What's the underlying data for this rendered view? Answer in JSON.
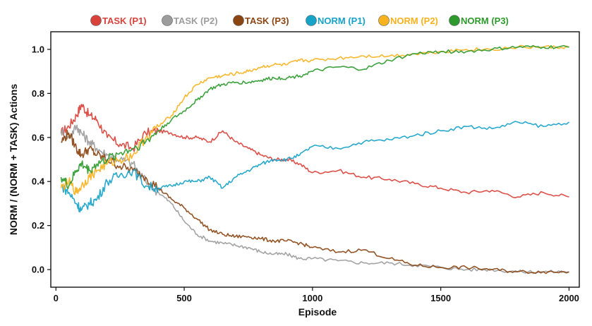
{
  "chart_data": {
    "type": "line",
    "title": "",
    "xlabel": "Episode",
    "ylabel": "NORM / (NORM + TASK) Actions",
    "xlim": [
      -20,
      2040
    ],
    "ylim": [
      -0.08,
      1.08
    ],
    "xticks": [
      0,
      500,
      1000,
      1500,
      2000
    ],
    "yticks": [
      0.0,
      0.2,
      0.4,
      0.6,
      0.8,
      1.0
    ],
    "xtick_labels": [
      "0",
      "500",
      "1000",
      "1500",
      "2000"
    ],
    "ytick_labels": [
      "0.0",
      "0.2",
      "0.4",
      "0.6",
      "0.8",
      "1.0"
    ],
    "legend_position": "top-center",
    "x": [
      20,
      50,
      80,
      100,
      130,
      160,
      200,
      250,
      300,
      350,
      400,
      450,
      500,
      550,
      600,
      650,
      700,
      750,
      800,
      850,
      900,
      950,
      1000,
      1100,
      1200,
      1300,
      1400,
      1500,
      1600,
      1700,
      1800,
      1900,
      2000
    ],
    "series": [
      {
        "name": "TASK (P1)",
        "color": "#d9423b",
        "values": [
          0.62,
          0.65,
          0.7,
          0.75,
          0.7,
          0.68,
          0.6,
          0.57,
          0.55,
          0.62,
          0.63,
          0.62,
          0.6,
          0.6,
          0.58,
          0.63,
          0.58,
          0.55,
          0.52,
          0.5,
          0.5,
          0.48,
          0.44,
          0.45,
          0.42,
          0.41,
          0.39,
          0.37,
          0.35,
          0.36,
          0.33,
          0.35,
          0.33
        ]
      },
      {
        "name": "TASK (P2)",
        "color": "#9c9c9c",
        "values": [
          0.63,
          0.6,
          0.65,
          0.62,
          0.58,
          0.55,
          0.52,
          0.5,
          0.48,
          0.4,
          0.35,
          0.3,
          0.22,
          0.16,
          0.13,
          0.12,
          0.11,
          0.1,
          0.08,
          0.07,
          0.07,
          0.05,
          0.05,
          0.04,
          0.03,
          0.03,
          0.02,
          0.01,
          0.0,
          0.0,
          -0.01,
          -0.01,
          -0.01
        ]
      },
      {
        "name": "TASK (P3)",
        "color": "#8b4513",
        "values": [
          0.58,
          0.62,
          0.55,
          0.52,
          0.55,
          0.52,
          0.5,
          0.47,
          0.45,
          0.42,
          0.37,
          0.32,
          0.28,
          0.23,
          0.18,
          0.16,
          0.15,
          0.15,
          0.14,
          0.13,
          0.13,
          0.12,
          0.1,
          0.08,
          0.09,
          0.05,
          0.02,
          0.01,
          0.01,
          0.0,
          -0.01,
          -0.01,
          -0.01
        ]
      },
      {
        "name": "NORM (P1)",
        "color": "#17a2c8",
        "values": [
          0.38,
          0.35,
          0.3,
          0.27,
          0.3,
          0.32,
          0.4,
          0.43,
          0.45,
          0.38,
          0.37,
          0.38,
          0.4,
          0.4,
          0.42,
          0.37,
          0.42,
          0.45,
          0.48,
          0.5,
          0.5,
          0.52,
          0.56,
          0.55,
          0.58,
          0.59,
          0.61,
          0.63,
          0.65,
          0.64,
          0.67,
          0.65,
          0.67
        ]
      },
      {
        "name": "NORM (P2)",
        "color": "#f7b21e",
        "values": [
          0.37,
          0.4,
          0.35,
          0.38,
          0.42,
          0.45,
          0.48,
          0.5,
          0.52,
          0.6,
          0.65,
          0.7,
          0.78,
          0.84,
          0.87,
          0.88,
          0.89,
          0.9,
          0.92,
          0.93,
          0.93,
          0.95,
          0.95,
          0.96,
          0.97,
          0.97,
          0.98,
          0.99,
          1.0,
          1.0,
          1.01,
          1.01,
          1.01
        ]
      },
      {
        "name": "NORM (P3)",
        "color": "#2e9a2e",
        "values": [
          0.42,
          0.38,
          0.45,
          0.48,
          0.45,
          0.48,
          0.5,
          0.53,
          0.55,
          0.58,
          0.63,
          0.68,
          0.72,
          0.77,
          0.82,
          0.84,
          0.85,
          0.85,
          0.86,
          0.87,
          0.87,
          0.88,
          0.9,
          0.92,
          0.91,
          0.95,
          0.98,
          0.99,
          0.99,
          1.0,
          1.01,
          1.01,
          1.01
        ]
      }
    ]
  }
}
